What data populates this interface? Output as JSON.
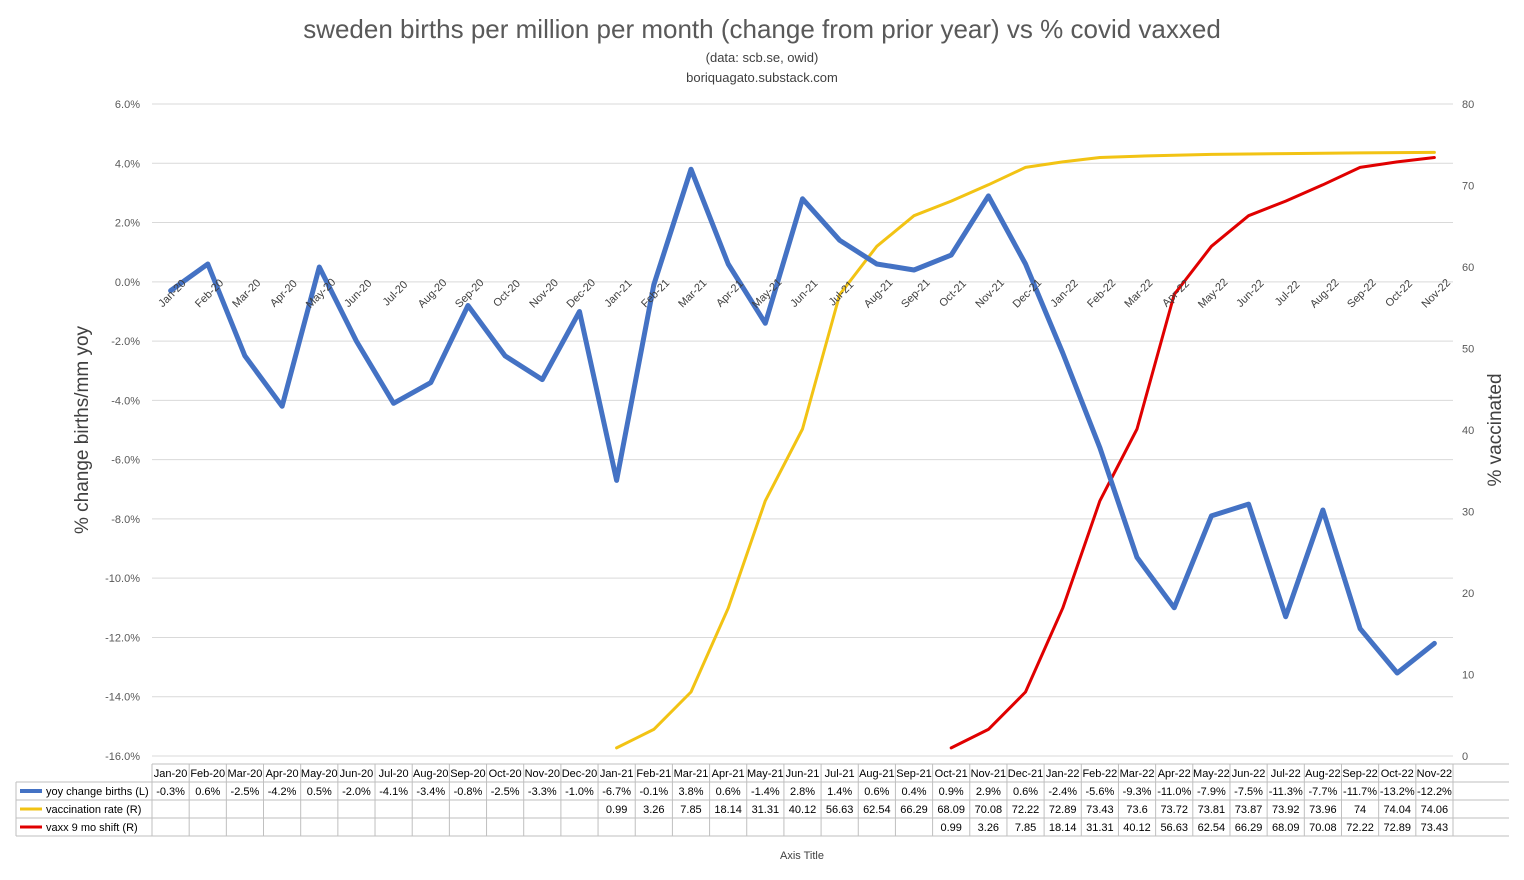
{
  "chart_data": {
    "type": "line",
    "title": "sweden births per million per month (change from prior year) vs % covid vaxxed",
    "subtitle": "(data: scb.se, owid)",
    "source": "boriquagato.substack.com",
    "ylabel": "% change births/mm yoy",
    "y2label": "% vaccinated",
    "xlabel": "Axis Title",
    "ylim": [
      -16,
      6
    ],
    "y2lim": [
      0,
      80
    ],
    "yticks": [
      "6.0%",
      "4.0%",
      "2.0%",
      "0.0%",
      "-2.0%",
      "-4.0%",
      "-6.0%",
      "-8.0%",
      "-10.0%",
      "-12.0%",
      "-14.0%",
      "-16.0%"
    ],
    "y2ticks": [
      "80",
      "70",
      "60",
      "50",
      "40",
      "30",
      "20",
      "10",
      "0"
    ],
    "categories": [
      "Jan-20",
      "Feb-20",
      "Mar-20",
      "Apr-20",
      "May-20",
      "Jun-20",
      "Jul-20",
      "Aug-20",
      "Sep-20",
      "Oct-20",
      "Nov-20",
      "Dec-20",
      "Jan-21",
      "Feb-21",
      "Mar-21",
      "Apr-21",
      "May-21",
      "Jun-21",
      "Jul-21",
      "Aug-21",
      "Sep-21",
      "Oct-21",
      "Nov-21",
      "Dec-21",
      "Jan-22",
      "Feb-22",
      "Mar-22",
      "Apr-22",
      "May-22",
      "Jun-22",
      "Jul-22",
      "Aug-22",
      "Sep-22",
      "Oct-22",
      "Nov-22"
    ],
    "series": [
      {
        "name": "yoy change births (L)",
        "axis": "left",
        "color": "#4472c4",
        "values": [
          -0.3,
          0.6,
          -2.5,
          -4.2,
          0.5,
          -2.0,
          -4.1,
          -3.4,
          -0.8,
          -2.5,
          -3.3,
          -1.0,
          -6.7,
          -0.1,
          3.8,
          0.6,
          -1.4,
          2.8,
          1.4,
          0.6,
          0.4,
          0.9,
          2.9,
          0.6,
          -2.4,
          -5.6,
          -9.3,
          -11.0,
          -7.9,
          -7.5,
          -11.3,
          -7.7,
          -11.7,
          -13.2,
          -12.2
        ],
        "labels": [
          "-0.3%",
          "0.6%",
          "-2.5%",
          "-4.2%",
          "0.5%",
          "-2.0%",
          "-4.1%",
          "-3.4%",
          "-0.8%",
          "-2.5%",
          "-3.3%",
          "-1.0%",
          "-6.7%",
          "-0.1%",
          "3.8%",
          "0.6%",
          "-1.4%",
          "2.8%",
          "1.4%",
          "0.6%",
          "0.4%",
          "0.9%",
          "2.9%",
          "0.6%",
          "-2.4%",
          "-5.6%",
          "-9.3%",
          "-11.0%",
          "-7.9%",
          "-7.5%",
          "-11.3%",
          "-7.7%",
          "-11.7%",
          "-13.2%",
          "-12.2%"
        ]
      },
      {
        "name": "vaccination rate (R)",
        "axis": "right",
        "color": "#f2c314",
        "values": [
          null,
          null,
          null,
          null,
          null,
          null,
          null,
          null,
          null,
          null,
          null,
          null,
          0.99,
          3.26,
          7.85,
          18.14,
          31.31,
          40.12,
          56.63,
          62.54,
          66.29,
          68.09,
          70.08,
          72.22,
          72.89,
          73.43,
          73.6,
          73.72,
          73.81,
          73.87,
          73.92,
          73.96,
          74,
          74.04,
          74.06
        ],
        "labels": [
          "",
          "",
          "",
          "",
          "",
          "",
          "",
          "",
          "",
          "",
          "",
          "",
          "0.99",
          "3.26",
          "7.85",
          "18.14",
          "31.31",
          "40.12",
          "56.63",
          "62.54",
          "66.29",
          "68.09",
          "70.08",
          "72.22",
          "72.89",
          "73.43",
          "73.6",
          "73.72",
          "73.81",
          "73.87",
          "73.92",
          "73.96",
          "74",
          "74.04",
          "74.06"
        ]
      },
      {
        "name": "vaxx 9 mo shift (R)",
        "axis": "right",
        "color": "#e00000",
        "values": [
          null,
          null,
          null,
          null,
          null,
          null,
          null,
          null,
          null,
          null,
          null,
          null,
          null,
          null,
          null,
          null,
          null,
          null,
          null,
          null,
          null,
          0.99,
          3.26,
          7.85,
          18.14,
          31.31,
          40.12,
          56.63,
          62.54,
          66.29,
          68.09,
          70.08,
          72.22,
          72.89,
          73.43
        ],
        "labels": [
          "",
          "",
          "",
          "",
          "",
          "",
          "",
          "",
          "",
          "",
          "",
          "",
          "",
          "",
          "",
          "",
          "",
          "",
          "",
          "",
          "",
          "0.99",
          "3.26",
          "7.85",
          "18.14",
          "31.31",
          "40.12",
          "56.63",
          "62.54",
          "66.29",
          "68.09",
          "70.08",
          "72.22",
          "72.89",
          "73.43"
        ]
      }
    ]
  }
}
